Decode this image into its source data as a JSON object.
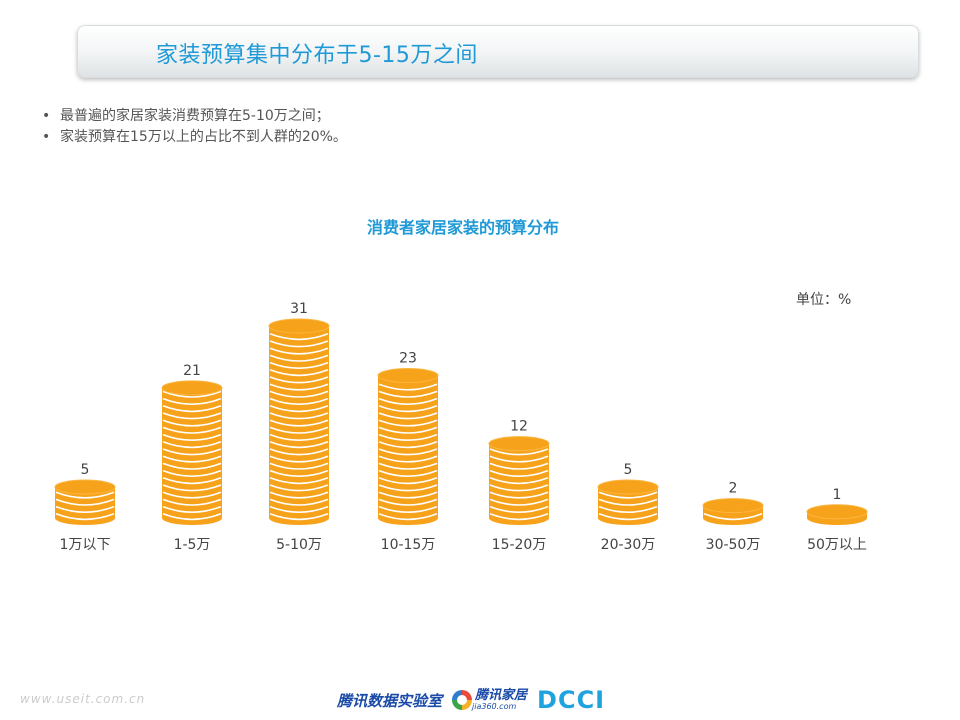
{
  "header": {
    "title": "家装预算集中分布于5-15万之间"
  },
  "bullets": [
    "最普遍的家居家装消费预算在5-10万之间；",
    "家装预算在15万以上的占比不到人群的20%。"
  ],
  "unit_label": "单位：%",
  "footer": {
    "url": "www.useit.com.cn",
    "logo_tencent_lab": "腾讯数据实验室",
    "logo_jiaju": "腾讯家居",
    "logo_jiaju_sub": "jia360.com",
    "logo_dcci": "DCCI"
  },
  "colors": {
    "coin": "#f7a21b",
    "coin_line": "#ffffff",
    "title_blue": "#1f9ad6"
  },
  "chart_data": {
    "type": "bar",
    "title": "消费者家居家装的预算分布",
    "categories": [
      "1万以下",
      "1-5万",
      "5-10万",
      "10-15万",
      "15-20万",
      "20-30万",
      "30-50万",
      "50万以上"
    ],
    "values": [
      5,
      21,
      31,
      23,
      12,
      5,
      2,
      1
    ],
    "ylim": [
      0,
      31
    ],
    "grid": false,
    "legend": "none"
  }
}
